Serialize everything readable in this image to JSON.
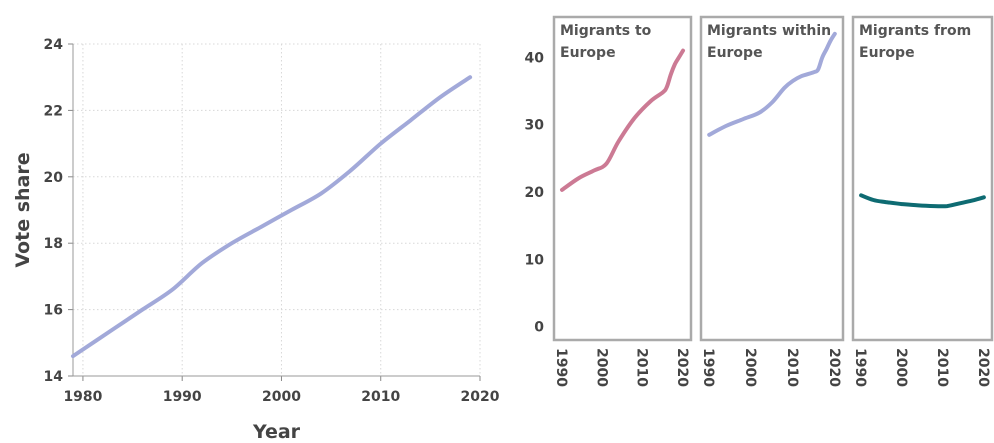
{
  "chart_data": [
    {
      "type": "line",
      "title": "",
      "xlabel": "Year",
      "ylabel": "Vote share",
      "xlim": [
        1979,
        2020
      ],
      "ylim": [
        14,
        24
      ],
      "xticks": [
        1980,
        1990,
        2000,
        2010,
        2020
      ],
      "yticks": [
        14,
        16,
        18,
        20,
        22,
        24
      ],
      "grid": true,
      "series": [
        {
          "color": "#a2a9d9",
          "x": [
            1979,
            1983,
            1986,
            1989,
            1992,
            1995,
            1998,
            2001,
            2004,
            2007,
            2010,
            2013,
            2016,
            2019
          ],
          "y": [
            14.6,
            15.4,
            16.0,
            16.6,
            17.4,
            18.0,
            18.5,
            19.0,
            19.5,
            20.2,
            21.0,
            21.7,
            22.4,
            23.0
          ]
        }
      ]
    },
    {
      "type": "line",
      "facets": true,
      "ylim": [
        -2,
        46
      ],
      "yticks": [
        0,
        10,
        20,
        30,
        40
      ],
      "xlim": [
        1989,
        2021
      ],
      "xticks": [
        1990,
        2000,
        2010,
        2020
      ],
      "panels": [
        {
          "title": [
            "Migrants to",
            "Europe"
          ],
          "color": "#cc7a94",
          "x": [
            1990,
            1994,
            1998,
            2001,
            2004,
            2008,
            2012,
            2015,
            2016,
            2017,
            2018,
            2019,
            2020
          ],
          "y": [
            20.3,
            22.0,
            23.2,
            24.2,
            27.5,
            31.0,
            33.5,
            34.8,
            35.6,
            37.5,
            39.0,
            40.0,
            41.0
          ]
        },
        {
          "title": [
            "Migrants within",
            "Europe"
          ],
          "color": "#a2a9d9",
          "x": [
            1990,
            1994,
            1998,
            2002,
            2005,
            2008,
            2010,
            2012,
            2015,
            2016,
            2017,
            2018,
            2019,
            2020
          ],
          "y": [
            28.5,
            29.8,
            30.8,
            31.8,
            33.3,
            35.5,
            36.5,
            37.2,
            37.8,
            38.2,
            40.0,
            41.2,
            42.5,
            43.5
          ]
        },
        {
          "title": [
            "Migrants from",
            "Europe"
          ],
          "color": "#0e6b72",
          "x": [
            1990,
            1993,
            1996,
            2000,
            2004,
            2008,
            2011,
            2014,
            2017,
            2020
          ],
          "y": [
            19.5,
            18.8,
            18.5,
            18.2,
            18.0,
            17.9,
            17.9,
            18.3,
            18.7,
            19.2
          ]
        }
      ]
    }
  ]
}
